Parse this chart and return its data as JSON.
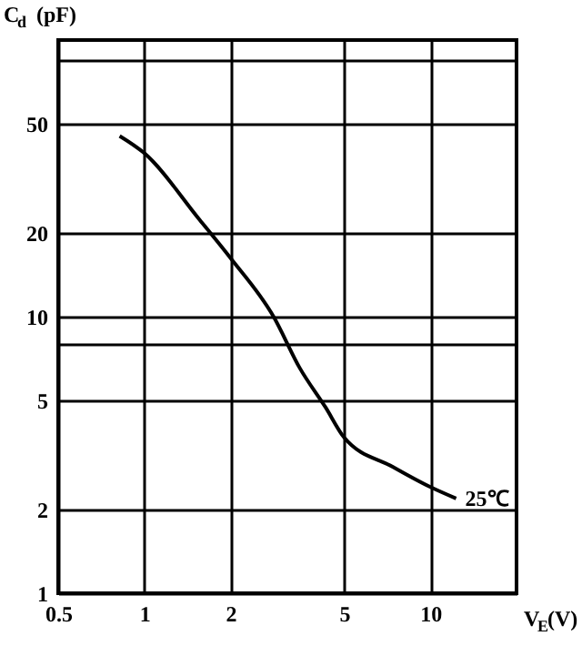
{
  "chart_data": {
    "type": "line",
    "xlabel": "V$_{E}$(V)",
    "ylabel": "C$_{d}$ (pF)",
    "log": "xy",
    "grid": true,
    "marker": "none",
    "line_style": "solid",
    "xlim": [
      0.5,
      20
    ],
    "xticks": [
      0.5,
      1,
      2,
      5,
      10
    ],
    "ylim": [
      1,
      100
    ],
    "yticks": [
      1,
      2,
      5,
      {
        "value": 8,
        "label": null
      },
      10,
      20,
      50,
      {
        "value": 85,
        "label": null
      }
    ],
    "series": [
      {
        "color": "#000000",
        "x": [
          0.82,
          1,
          1.56,
          2,
          2.83,
          3.5,
          4.3,
          5,
          7.4,
          10,
          12.3
        ],
        "values": [
          45,
          39,
          22.4,
          16.3,
          10,
          6.5,
          4.7,
          3.65,
          2.86,
          2.42,
          2.2
        ]
      }
    ],
    "annotations": [
      {
        "text": "25℃",
        "x": 12.3,
        "y": 2.2
      }
    ]
  }
}
